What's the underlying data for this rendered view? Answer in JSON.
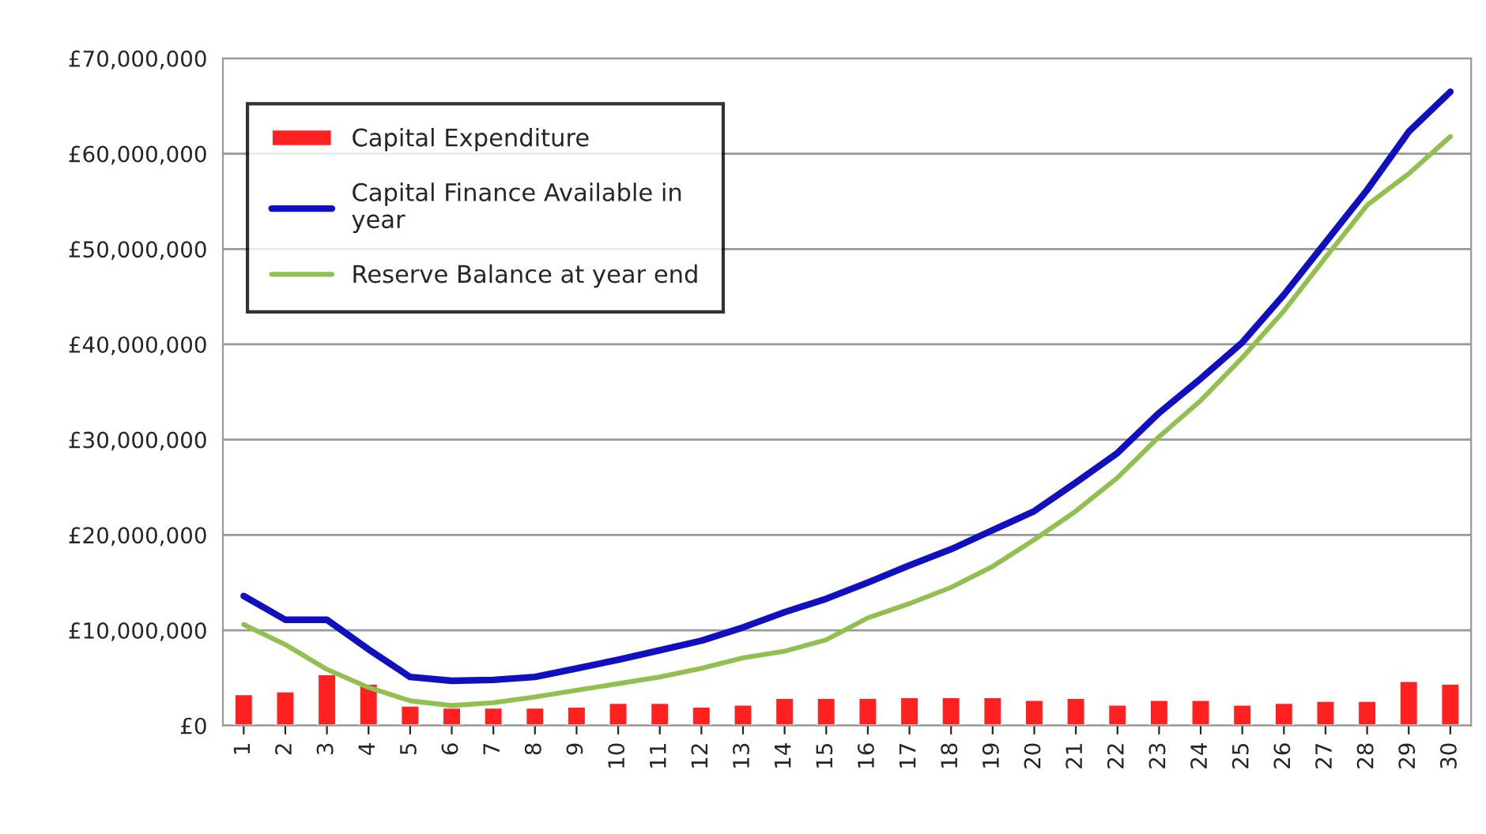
{
  "chart_data": {
    "type": "bar",
    "categories": [
      "1",
      "2",
      "3",
      "4",
      "5",
      "6",
      "7",
      "8",
      "9",
      "10",
      "11",
      "12",
      "13",
      "14",
      "15",
      "16",
      "17",
      "18",
      "19",
      "20",
      "21",
      "22",
      "23",
      "24",
      "25",
      "26",
      "27",
      "28",
      "29",
      "30"
    ],
    "series": [
      {
        "name": "Capital Expenditure",
        "color": "#ff2020",
        "values": [
          3300000,
          3600000,
          5400000,
          4400000,
          2100000,
          1900000,
          1900000,
          1900000,
          2000000,
          2400000,
          2400000,
          2000000,
          2200000,
          2900000,
          2900000,
          2900000,
          3000000,
          3000000,
          3000000,
          2700000,
          2900000,
          2200000,
          2700000,
          2700000,
          2200000,
          2400000,
          2600000,
          2600000,
          4700000,
          4400000
        ]
      },
      {
        "name": "Capital Finance Available in\nyear",
        "type": "line",
        "color": "#1010c0",
        "values": [
          13600000,
          11100000,
          11100000,
          8000000,
          5100000,
          4700000,
          4800000,
          5100000,
          6000000,
          6900000,
          7900000,
          8900000,
          10300000,
          11900000,
          13300000,
          15000000,
          16800000,
          18500000,
          20500000,
          22500000,
          25500000,
          28600000,
          32800000,
          36400000,
          40200000,
          45200000,
          50700000,
          56200000,
          62300000,
          66500000
        ]
      },
      {
        "name": "Reserve Balance at year end",
        "type": "line",
        "color": "#92c050",
        "values": [
          10600000,
          8500000,
          5900000,
          4000000,
          2600000,
          2100000,
          2400000,
          3000000,
          3700000,
          4400000,
          5100000,
          6000000,
          7100000,
          7800000,
          9000000,
          11300000,
          12800000,
          14500000,
          16700000,
          19500000,
          22500000,
          26000000,
          30300000,
          34100000,
          38600000,
          43500000,
          49100000,
          54600000,
          57900000,
          61800000
        ]
      }
    ],
    "ylim": [
      0,
      70000000
    ],
    "yticks": [
      {
        "value": 0,
        "label": "£0"
      },
      {
        "value": 10000000,
        "label": "£10,000,000"
      },
      {
        "value": 20000000,
        "label": "£20,000,000"
      },
      {
        "value": 30000000,
        "label": "£30,000,000"
      },
      {
        "value": 40000000,
        "label": "£40,000,000"
      },
      {
        "value": 50000000,
        "label": "£50,000,000"
      },
      {
        "value": 60000000,
        "label": "£60,000,000"
      },
      {
        "value": 70000000,
        "label": "£70,000,000"
      }
    ],
    "grid": "y",
    "legend": "top left",
    "marker": "none",
    "line_style": "solid"
  }
}
